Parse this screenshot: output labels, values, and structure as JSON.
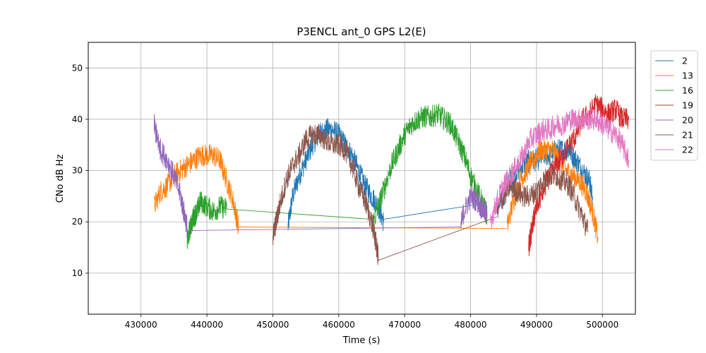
{
  "chart_data": {
    "type": "line",
    "title": "P3ENCL ant_0 GPS L2(E)",
    "xlabel": "Time (s)",
    "ylabel": "CNo dB Hz",
    "xlim": [
      422000,
      505000
    ],
    "ylim": [
      2,
      55
    ],
    "xticks": [
      430000,
      440000,
      450000,
      460000,
      470000,
      480000,
      490000,
      500000
    ],
    "yticks": [
      10,
      20,
      30,
      40,
      50
    ],
    "grid": true,
    "legend_position": "outside-right",
    "series": [
      {
        "name": "2",
        "color": "#1f77b4",
        "segments": [
          [
            [
              452300,
              19
            ],
            [
              453000,
              25
            ],
            [
              454000,
              29
            ],
            [
              455000,
              32
            ],
            [
              456000,
              35
            ],
            [
              457000,
              37
            ],
            [
              458000,
              38
            ],
            [
              459000,
              38
            ],
            [
              460000,
              37
            ],
            [
              461000,
              35
            ],
            [
              462000,
              33
            ],
            [
              463000,
              30
            ],
            [
              464000,
              27
            ],
            [
              465000,
              25
            ],
            [
              466000,
              23
            ],
            [
              466800,
              20
            ]
          ],
          [
            [
              466800,
              20.5
            ],
            [
              481500,
              23.5
            ]
          ],
          [
            [
              484000,
              22
            ],
            [
              485000,
              25
            ],
            [
              486000,
              28
            ],
            [
              487000,
              30
            ],
            [
              488000,
              31
            ],
            [
              489000,
              32
            ],
            [
              490000,
              32
            ],
            [
              491000,
              33
            ],
            [
              492000,
              33
            ],
            [
              493000,
              34
            ],
            [
              494000,
              34
            ],
            [
              495000,
              34
            ],
            [
              496000,
              32
            ],
            [
              497000,
              30
            ],
            [
              498000,
              28
            ],
            [
              498500,
              25
            ]
          ]
        ]
      },
      {
        "name": "13",
        "color": "#ff7f0e",
        "segments": [
          [
            [
              432000,
              23
            ],
            [
              433000,
              26
            ],
            [
              434000,
              27
            ],
            [
              435000,
              29
            ],
            [
              436000,
              30
            ],
            [
              437000,
              31
            ],
            [
              438000,
              32
            ],
            [
              439000,
              33
            ],
            [
              440000,
              33
            ],
            [
              441000,
              33
            ],
            [
              442000,
              32
            ],
            [
              443000,
              28
            ],
            [
              444000,
              24
            ],
            [
              444800,
              19
            ]
          ],
          [
            [
              444800,
              19
            ],
            [
              485500,
              18.7
            ]
          ],
          [
            [
              485500,
              19
            ],
            [
              486500,
              24
            ],
            [
              487500,
              28
            ],
            [
              488500,
              30
            ],
            [
              489500,
              32
            ],
            [
              490500,
              34
            ],
            [
              491500,
              34
            ],
            [
              492500,
              34
            ],
            [
              493500,
              32
            ],
            [
              494500,
              30
            ],
            [
              495500,
              29
            ],
            [
              496500,
              28
            ],
            [
              497500,
              26
            ],
            [
              498500,
              22
            ],
            [
              499300,
              17
            ]
          ]
        ]
      },
      {
        "name": "16",
        "color": "#2ca02c",
        "segments": [
          [
            [
              437000,
              16
            ],
            [
              437500,
              19
            ],
            [
              438000,
              21
            ],
            [
              438500,
              22
            ],
            [
              439000,
              24
            ],
            [
              440000,
              23
            ],
            [
              441000,
              22
            ],
            [
              442000,
              23
            ],
            [
              443000,
              22.5
            ]
          ],
          [
            [
              443000,
              22.5
            ],
            [
              465000,
              20.5
            ]
          ],
          [
            [
              465000,
              19
            ],
            [
              466000,
              23
            ],
            [
              467000,
              27
            ],
            [
              468000,
              31
            ],
            [
              469000,
              34
            ],
            [
              470000,
              37
            ],
            [
              471000,
              39
            ],
            [
              472000,
              40
            ],
            [
              473000,
              40.5
            ],
            [
              474000,
              40.5
            ],
            [
              475000,
              41
            ],
            [
              476000,
              40
            ],
            [
              477000,
              39
            ],
            [
              478000,
              36
            ],
            [
              479000,
              33
            ],
            [
              480000,
              29
            ],
            [
              481000,
              26
            ],
            [
              482000,
              23
            ],
            [
              482500,
              21
            ]
          ]
        ]
      },
      {
        "name": "19",
        "color": "#d62728",
        "segments": [
          [
            [
              488800,
              15
            ],
            [
              489500,
              20
            ],
            [
              490000,
              23
            ],
            [
              491000,
              26
            ],
            [
              492000,
              29
            ],
            [
              493000,
              31
            ],
            [
              494000,
              33
            ],
            [
              495000,
              35
            ],
            [
              496000,
              37
            ],
            [
              497000,
              40
            ],
            [
              498000,
              41
            ],
            [
              499000,
              43
            ],
            [
              500000,
              42
            ],
            [
              501000,
              41
            ],
            [
              502000,
              42
            ],
            [
              503000,
              40
            ],
            [
              504000,
              40
            ]
          ]
        ]
      },
      {
        "name": "20",
        "color": "#9467bd",
        "segments": [
          [
            [
              432000,
              39
            ],
            [
              432500,
              36
            ],
            [
              433000,
              34
            ],
            [
              434000,
              32
            ],
            [
              435000,
              29
            ],
            [
              436000,
              25
            ],
            [
              436500,
              22
            ],
            [
              437000,
              19
            ]
          ],
          [
            [
              437000,
              18.3
            ],
            [
              478500,
              19
            ]
          ],
          [
            [
              478500,
              19
            ],
            [
              479000,
              22
            ],
            [
              480000,
              25
            ],
            [
              481000,
              24
            ],
            [
              482000,
              22
            ],
            [
              482500,
              22
            ]
          ]
        ]
      },
      {
        "name": "21",
        "color": "#8c564b",
        "segments": [
          [
            [
              450000,
              17
            ],
            [
              450500,
              20
            ],
            [
              451000,
              23
            ],
            [
              452000,
              28
            ],
            [
              453000,
              31
            ],
            [
              454000,
              33
            ],
            [
              455000,
              36
            ],
            [
              456000,
              37
            ],
            [
              457000,
              37
            ],
            [
              458000,
              36
            ],
            [
              459000,
              35
            ],
            [
              460000,
              35
            ],
            [
              461000,
              34
            ],
            [
              462000,
              31
            ],
            [
              463000,
              27
            ],
            [
              464000,
              24
            ],
            [
              465000,
              20
            ],
            [
              465500,
              17
            ],
            [
              466000,
              13
            ]
          ],
          [
            [
              466000,
              12.5
            ],
            [
              484000,
              21
            ]
          ],
          [
            [
              484000,
              22
            ],
            [
              485000,
              25
            ],
            [
              486000,
              27
            ],
            [
              487000,
              26
            ],
            [
              488000,
              25
            ],
            [
              489000,
              25
            ],
            [
              490000,
              26
            ],
            [
              491000,
              28
            ],
            [
              492000,
              29
            ],
            [
              493000,
              29
            ],
            [
              494000,
              28
            ],
            [
              495000,
              27
            ],
            [
              496000,
              24
            ],
            [
              497000,
              21
            ],
            [
              497800,
              18
            ]
          ]
        ]
      },
      {
        "name": "22",
        "color": "#e377c2",
        "segments": [
          [
            [
              483000,
              20
            ],
            [
              484000,
              24
            ],
            [
              485000,
              27
            ],
            [
              486000,
              29
            ],
            [
              487000,
              31
            ],
            [
              488000,
              33
            ],
            [
              489000,
              36
            ],
            [
              490000,
              37
            ],
            [
              491000,
              38
            ],
            [
              492000,
              38
            ],
            [
              493000,
              39
            ],
            [
              494000,
              39
            ],
            [
              495000,
              40
            ],
            [
              496000,
              40
            ],
            [
              497000,
              40
            ],
            [
              498000,
              40
            ],
            [
              499000,
              40
            ],
            [
              500000,
              39
            ],
            [
              501000,
              38
            ],
            [
              502000,
              37
            ],
            [
              503000,
              35
            ],
            [
              504000,
              32
            ]
          ]
        ]
      }
    ]
  }
}
